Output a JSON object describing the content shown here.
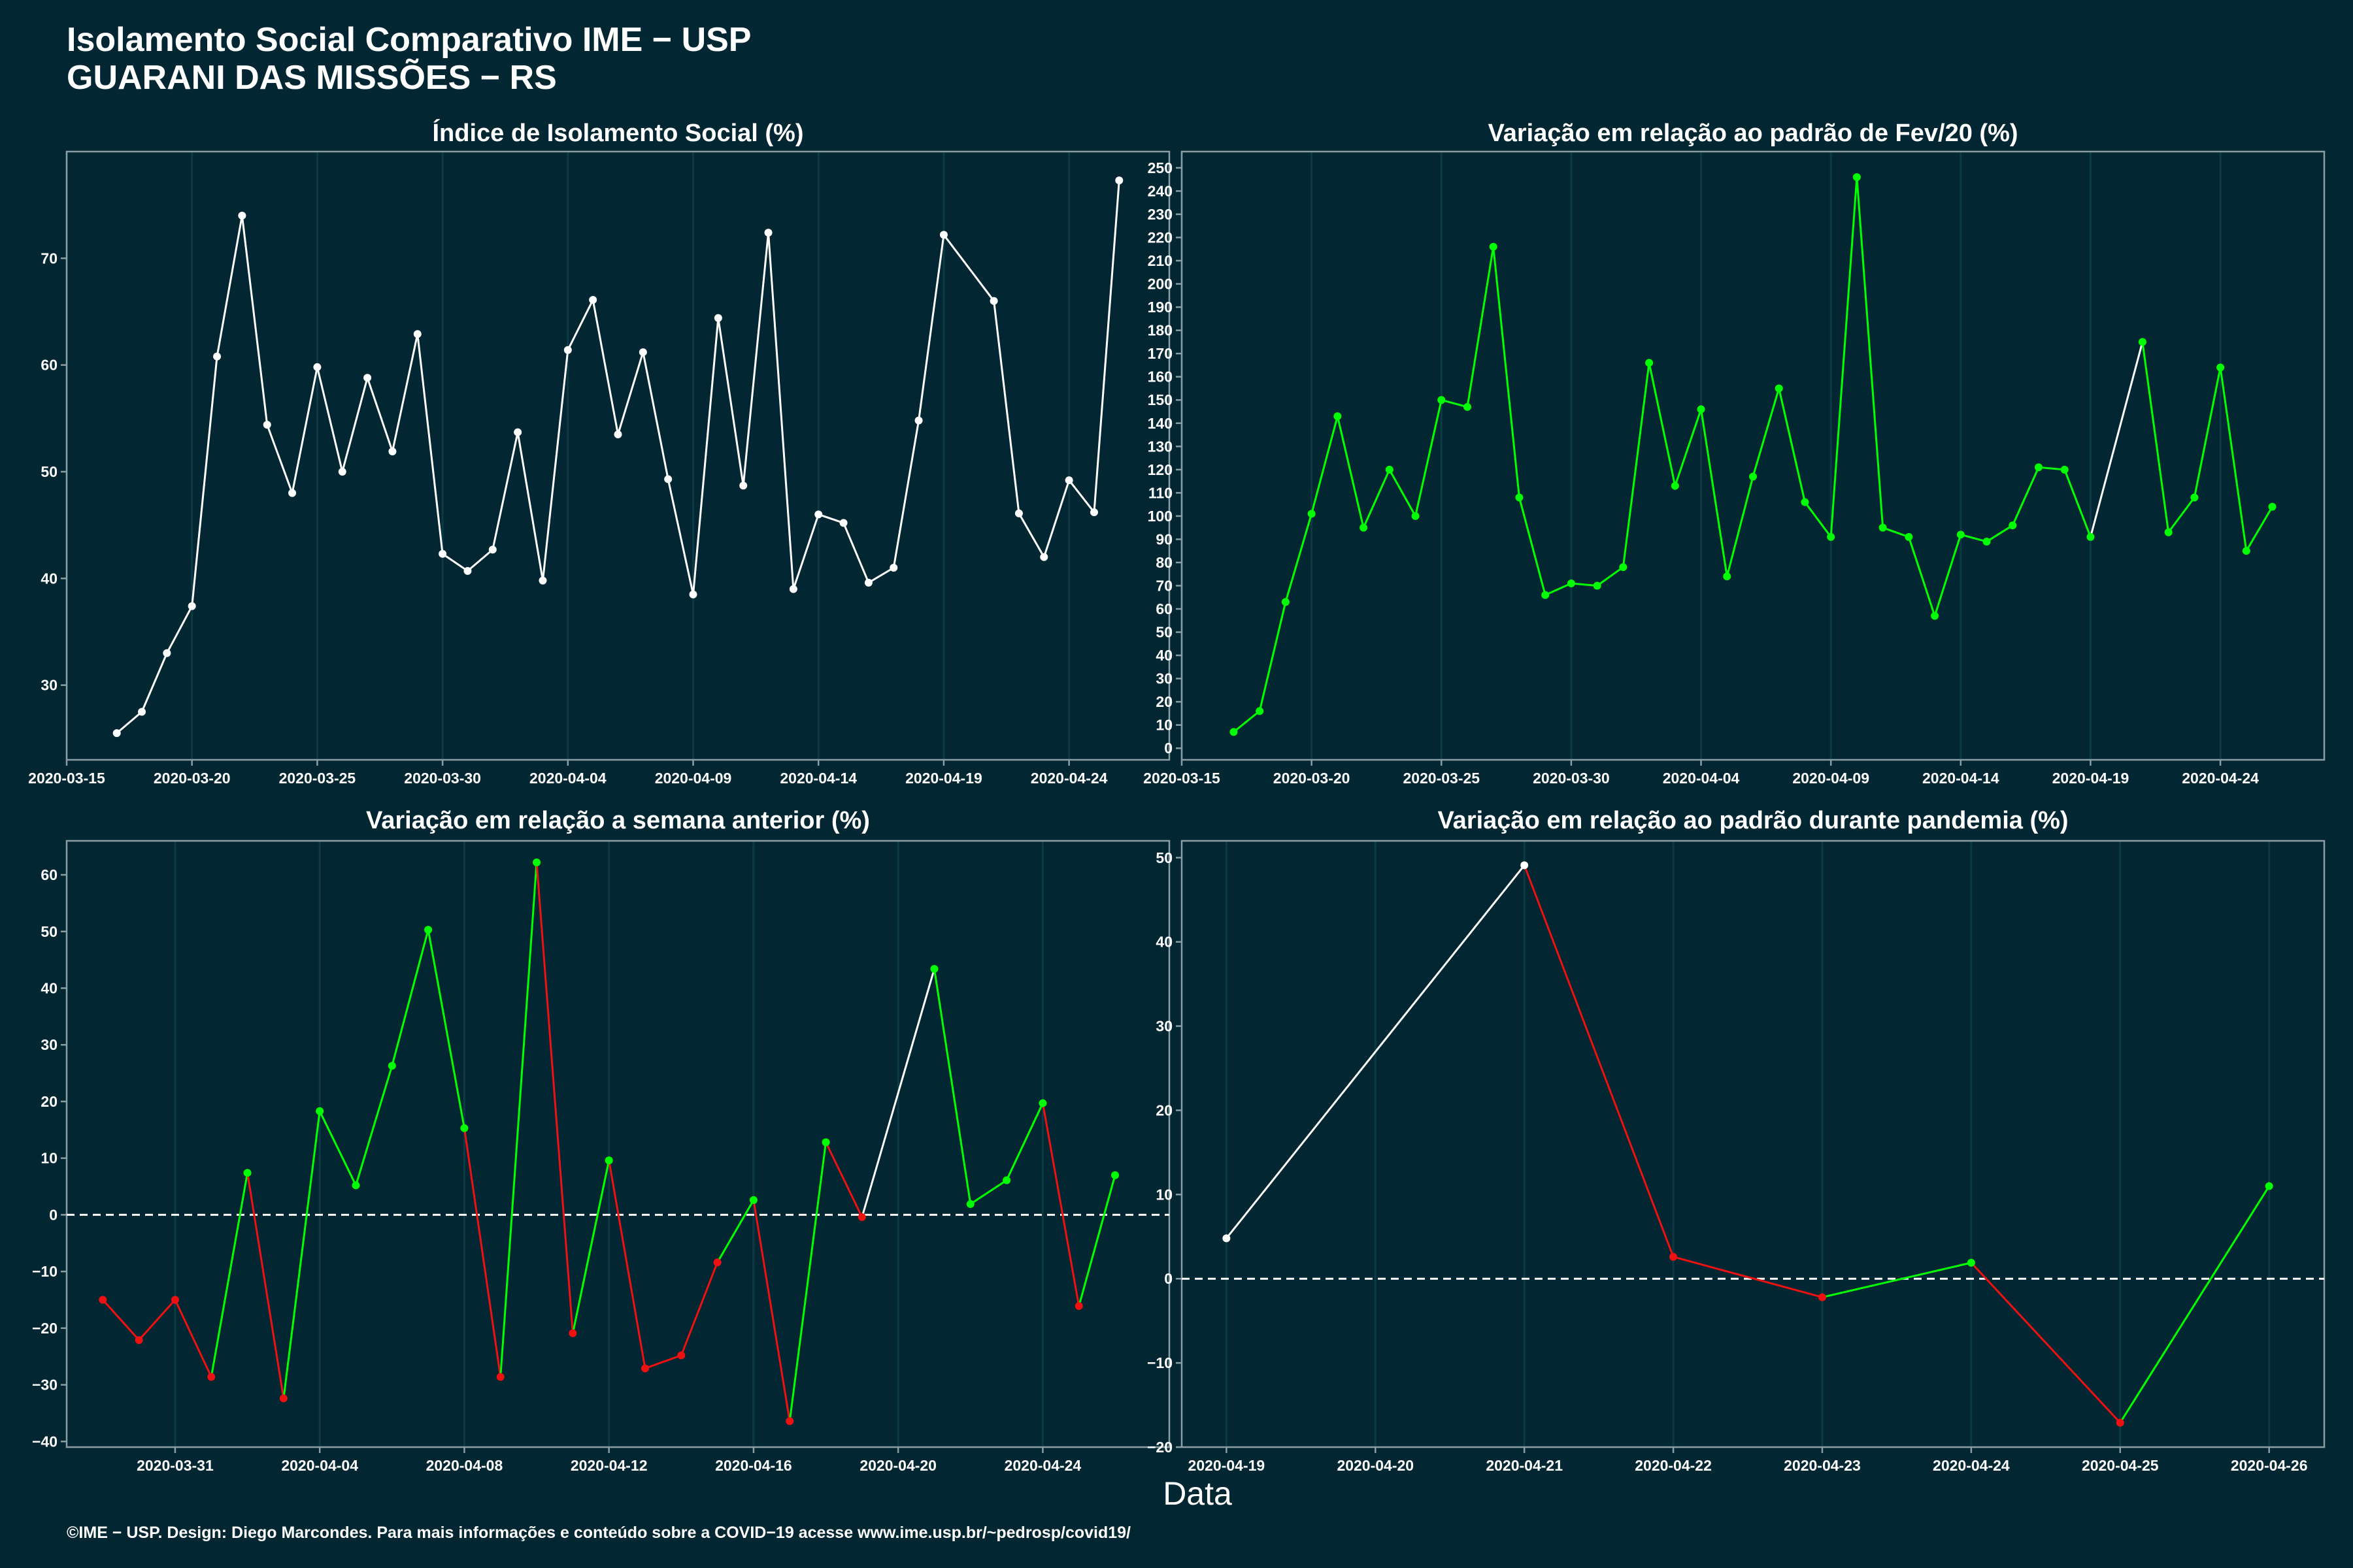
{
  "header": {
    "title_line1": "Isolamento Social Comparativo IME − USP",
    "title_line2": "GUARANI DAS MISSÕES − RS"
  },
  "xlabel": "Data",
  "footer": "©IME − USP. Design: Diego Marcondes. Para mais informações e conteúdo sobre a COVID−19 acesse www.ime.usp.br/~pedrosp/covid19/",
  "colors": {
    "background": "#022733",
    "white": "#ffffff",
    "green": "#00ff00",
    "red": "#ee1111",
    "frame": "#8a9ea4",
    "grid": "#0c3a44"
  },
  "chart_data": [
    {
      "type": "line",
      "title": "Índice de Isolamento Social (%)",
      "xlim": [
        "2020-03-15",
        "2020-04-28"
      ],
      "ylim": [
        23,
        80
      ],
      "x_ticks": [
        "2020-03-15",
        "2020-03-20",
        "2020-03-25",
        "2020-03-30",
        "2020-04-04",
        "2020-04-09",
        "2020-04-14",
        "2020-04-19",
        "2020-04-24"
      ],
      "y_ticks": [
        30,
        40,
        50,
        60,
        70
      ],
      "color_rule": "white",
      "x": [
        "2020-03-17",
        "2020-03-18",
        "2020-03-19",
        "2020-03-20",
        "2020-03-21",
        "2020-03-22",
        "2020-03-23",
        "2020-03-24",
        "2020-03-25",
        "2020-03-26",
        "2020-03-27",
        "2020-03-28",
        "2020-03-29",
        "2020-03-30",
        "2020-03-31",
        "2020-04-01",
        "2020-04-02",
        "2020-04-03",
        "2020-04-04",
        "2020-04-05",
        "2020-04-06",
        "2020-04-07",
        "2020-04-08",
        "2020-04-09",
        "2020-04-10",
        "2020-04-11",
        "2020-04-12",
        "2020-04-13",
        "2020-04-14",
        "2020-04-15",
        "2020-04-16",
        "2020-04-17",
        "2020-04-18",
        "2020-04-19",
        "2020-04-21",
        "2020-04-22",
        "2020-04-23",
        "2020-04-24",
        "2020-04-25",
        "2020-04-26"
      ],
      "y": [
        25.5,
        27.5,
        33.0,
        37.4,
        60.8,
        74.0,
        54.4,
        48.0,
        59.8,
        50.0,
        58.8,
        51.9,
        62.9,
        42.3,
        40.7,
        42.7,
        53.7,
        39.8,
        61.4,
        66.1,
        53.5,
        61.2,
        49.3,
        38.5,
        64.4,
        48.7,
        72.4,
        39.0,
        46.0,
        45.2,
        39.6,
        41.0,
        54.8,
        72.2,
        66.0,
        46.1,
        42.0,
        49.2,
        46.2,
        77.3
      ]
    },
    {
      "type": "line",
      "title": "Variação em relação ao padrão de Fev/20 (%)",
      "xlim": [
        "2020-03-15",
        "2020-04-28"
      ],
      "ylim": [
        -5,
        257
      ],
      "x_ticks": [
        "2020-03-15",
        "2020-03-20",
        "2020-03-25",
        "2020-03-30",
        "2020-04-04",
        "2020-04-09",
        "2020-04-14",
        "2020-04-19",
        "2020-04-24"
      ],
      "y_ticks": [
        0,
        10,
        20,
        30,
        40,
        50,
        60,
        70,
        80,
        90,
        100,
        110,
        120,
        130,
        140,
        150,
        160,
        170,
        180,
        190,
        200,
        210,
        220,
        230,
        240,
        250
      ],
      "color_rule": "green_with_gap",
      "x": [
        "2020-03-17",
        "2020-03-18",
        "2020-03-19",
        "2020-03-20",
        "2020-03-21",
        "2020-03-22",
        "2020-03-23",
        "2020-03-24",
        "2020-03-25",
        "2020-03-26",
        "2020-03-27",
        "2020-03-28",
        "2020-03-29",
        "2020-03-30",
        "2020-03-31",
        "2020-04-01",
        "2020-04-02",
        "2020-04-03",
        "2020-04-04",
        "2020-04-05",
        "2020-04-06",
        "2020-04-07",
        "2020-04-08",
        "2020-04-09",
        "2020-04-10",
        "2020-04-11",
        "2020-04-12",
        "2020-04-13",
        "2020-04-14",
        "2020-04-15",
        "2020-04-16",
        "2020-04-17",
        "2020-04-18",
        "2020-04-19",
        "2020-04-21",
        "2020-04-22",
        "2020-04-23",
        "2020-04-24",
        "2020-04-25",
        "2020-04-26"
      ],
      "y": [
        7,
        16,
        63,
        101,
        143,
        95,
        120,
        100,
        150,
        147,
        216,
        108,
        66,
        71,
        70,
        78,
        166,
        113,
        146,
        74,
        117,
        155,
        106,
        91,
        246,
        95,
        91,
        57,
        92,
        89,
        96,
        121,
        120,
        91,
        175,
        93,
        108,
        164,
        85,
        104
      ]
    },
    {
      "type": "line",
      "title": "Variação em relação a semana anterior (%)",
      "xlim": [
        "2020-03-28",
        "2020-04-27.5"
      ],
      "ylim": [
        -41,
        66
      ],
      "x_ticks": [
        "2020-03-31",
        "2020-04-04",
        "2020-04-08",
        "2020-04-12",
        "2020-04-16",
        "2020-04-20",
        "2020-04-24"
      ],
      "y_ticks": [
        -40,
        -30,
        -20,
        -10,
        0,
        10,
        20,
        30,
        40,
        50,
        60
      ],
      "reference_line": 0,
      "color_rule": "sign_with_gap",
      "x": [
        "2020-03-29",
        "2020-03-30",
        "2020-03-31",
        "2020-04-01",
        "2020-04-02",
        "2020-04-03",
        "2020-04-04",
        "2020-04-05",
        "2020-04-06",
        "2020-04-07",
        "2020-04-08",
        "2020-04-09",
        "2020-04-10",
        "2020-04-11",
        "2020-04-12",
        "2020-04-13",
        "2020-04-14",
        "2020-04-15",
        "2020-04-16",
        "2020-04-17",
        "2020-04-18",
        "2020-04-19",
        "2020-04-21",
        "2020-04-22",
        "2020-04-23",
        "2020-04-24",
        "2020-04-25",
        "2020-04-26"
      ],
      "y": [
        -15.0,
        -22.1,
        -15.0,
        -28.6,
        7.4,
        -32.4,
        18.3,
        5.2,
        26.3,
        50.3,
        15.3,
        -28.6,
        62.2,
        -20.9,
        9.6,
        -27.1,
        -24.8,
        -8.4,
        2.6,
        -36.4,
        12.8,
        -0.4,
        43.4,
        1.9,
        6.1,
        19.7,
        -16.1,
        7.0
      ]
    },
    {
      "type": "line",
      "title": "Variação em relação ao padrão durante pandemia (%)",
      "xlim": [
        "2020-04-18.7",
        "2020-04-26.37"
      ],
      "ylim": [
        -20,
        52
      ],
      "x_ticks": [
        "2020-04-19",
        "2020-04-20",
        "2020-04-21",
        "2020-04-22",
        "2020-04-23",
        "2020-04-24",
        "2020-04-25",
        "2020-04-26"
      ],
      "y_ticks": [
        -20,
        -10,
        0,
        10,
        20,
        30,
        40,
        50
      ],
      "reference_line": 0,
      "color_rule": "slope_with_gap",
      "x": [
        "2020-04-19",
        "2020-04-21",
        "2020-04-22",
        "2020-04-23",
        "2020-04-24",
        "2020-04-25",
        "2020-04-26"
      ],
      "y": [
        4.8,
        49.1,
        2.6,
        -2.2,
        1.9,
        -17.1,
        11.0
      ]
    }
  ]
}
